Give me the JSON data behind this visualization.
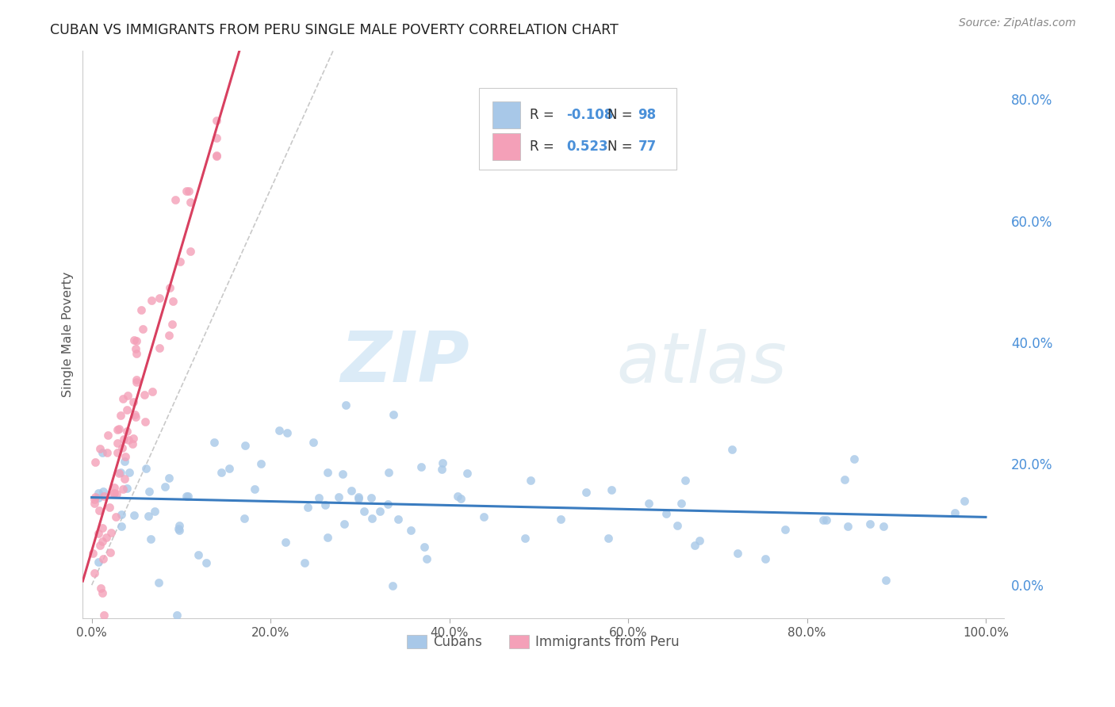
{
  "title": "CUBAN VS IMMIGRANTS FROM PERU SINGLE MALE POVERTY CORRELATION CHART",
  "source": "Source: ZipAtlas.com",
  "ylabel": "Single Male Poverty",
  "legend_cubans": "Cubans",
  "legend_peru": "Immigrants from Peru",
  "cubans_R": -0.108,
  "cubans_N": 98,
  "peru_R": 0.523,
  "peru_N": 77,
  "cubans_color": "#a8c8e8",
  "peru_color": "#f4a0b8",
  "cubans_line_color": "#3a7cc0",
  "peru_line_color": "#d84060",
  "trendline_dashed_color": "#bbbbbb",
  "background_color": "#ffffff",
  "grid_color": "#e0e0e0",
  "right_axis_color": "#4a90d9",
  "watermark_zip": "ZIP",
  "watermark_atlas": "atlas",
  "yticks_right": [
    "0.0%",
    "20.0%",
    "40.0%",
    "60.0%",
    "80.0%"
  ],
  "yticks_right_vals": [
    0.0,
    0.2,
    0.4,
    0.6,
    0.8
  ],
  "xtick_labels": [
    "0.0%",
    "20.0%",
    "40.0%",
    "60.0%",
    "80.0%",
    "100.0%"
  ],
  "xtick_vals": [
    0.0,
    0.2,
    0.4,
    0.6,
    0.8,
    1.0
  ],
  "xlim": [
    -0.01,
    1.02
  ],
  "ylim": [
    -0.055,
    0.88
  ]
}
